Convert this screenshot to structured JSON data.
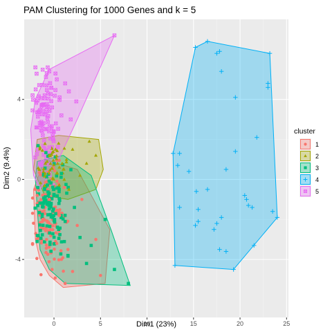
{
  "chart_data": {
    "type": "scatter",
    "title": "PAM Clustering for 1000 Genes and k = 5",
    "xlabel": "Dim1 (23%)",
    "ylabel": "Dim2 (9.4%)",
    "xlim": [
      -3.2,
      25.2
    ],
    "ylim": [
      -6.9,
      8.0
    ],
    "x_ticks": [
      0,
      5,
      10,
      15,
      20,
      25
    ],
    "y_ticks": [
      -4,
      0,
      4
    ],
    "grid": true,
    "legend": {
      "title": "cluster",
      "placement": "right",
      "entries": [
        "1",
        "2",
        "3",
        "4",
        "5"
      ]
    },
    "series": [
      {
        "name": "1",
        "color": "#F8766D",
        "shape": "circle",
        "hull": [
          [
            -2.0,
            -3.0
          ],
          [
            -1.5,
            -4.0
          ],
          [
            -0.5,
            -4.8
          ],
          [
            1.0,
            -5.4
          ],
          [
            5.5,
            -5.2
          ],
          [
            6.0,
            -2.5
          ],
          [
            2.5,
            0.5
          ],
          [
            -1.0,
            1.0
          ],
          [
            -2.2,
            -0.5
          ]
        ],
        "points": [
          [
            -0.5,
            -1.0
          ],
          [
            -1.2,
            -2.0
          ],
          [
            0.3,
            -3.2
          ],
          [
            0.8,
            -4.0
          ],
          [
            -0.2,
            -4.5
          ],
          [
            1.2,
            -5.2
          ],
          [
            2.5,
            -2.3
          ],
          [
            4.5,
            -3.0
          ],
          [
            5.0,
            -4.8
          ],
          [
            3.0,
            -1.0
          ],
          [
            -1.8,
            -0.8
          ],
          [
            0.6,
            -1.8
          ],
          [
            1.5,
            -3.5
          ],
          [
            2.0,
            -4.6
          ],
          [
            -0.8,
            -3.0
          ],
          [
            1.1,
            -0.4
          ]
        ]
      },
      {
        "name": "2",
        "color": "#A3A500",
        "shape": "triangle",
        "hull": [
          [
            -2.2,
            0.5
          ],
          [
            -1.8,
            2.0
          ],
          [
            0.5,
            2.2
          ],
          [
            4.8,
            2.0
          ],
          [
            5.3,
            0.5
          ],
          [
            4.5,
            -0.5
          ],
          [
            1.5,
            -1.0
          ],
          [
            -1.0,
            -0.8
          ]
        ],
        "points": [
          [
            0.5,
            1.8
          ],
          [
            2.0,
            1.5
          ],
          [
            3.5,
            0.8
          ],
          [
            4.5,
            1.2
          ],
          [
            1.0,
            0.5
          ],
          [
            -0.5,
            1.2
          ],
          [
            2.8,
            0.2
          ],
          [
            3.8,
            1.9
          ],
          [
            -1.5,
            1.6
          ],
          [
            1.6,
            -0.5
          ]
        ]
      },
      {
        "name": "3",
        "color": "#00BF7D",
        "shape": "square",
        "hull": [
          [
            -2.0,
            0.0
          ],
          [
            -1.5,
            -3.5
          ],
          [
            -0.5,
            -4.5
          ],
          [
            1.2,
            -5.2
          ],
          [
            8.2,
            -5.3
          ],
          [
            6.2,
            -2.6
          ],
          [
            4.0,
            0.2
          ],
          [
            1.0,
            1.2
          ],
          [
            -1.8,
            0.9
          ]
        ],
        "points": [
          [
            -0.3,
            -1.2
          ],
          [
            0.5,
            -2.5
          ],
          [
            1.5,
            -3.8
          ],
          [
            3.5,
            -4.2
          ],
          [
            8.0,
            -5.2
          ],
          [
            5.5,
            -2.0
          ],
          [
            2.2,
            -1.4
          ],
          [
            -1.0,
            -0.5
          ],
          [
            0.8,
            0.3
          ],
          [
            4.0,
            -3.3
          ],
          [
            6.5,
            -4.5
          ],
          [
            2.8,
            -2.9
          ]
        ]
      },
      {
        "name": "4",
        "color": "#00B0F6",
        "shape": "plus",
        "hull": [
          [
            12.8,
            1.3
          ],
          [
            15.2,
            6.6
          ],
          [
            16.5,
            6.9
          ],
          [
            23.2,
            6.3
          ],
          [
            24.0,
            -1.9
          ],
          [
            19.3,
            -4.5
          ],
          [
            13.0,
            -4.3
          ]
        ],
        "points": [
          [
            15.2,
            6.6
          ],
          [
            16.5,
            6.9
          ],
          [
            17.5,
            6.3
          ],
          [
            17.8,
            6.4
          ],
          [
            18.0,
            5.4
          ],
          [
            23.2,
            6.3
          ],
          [
            23.0,
            4.8
          ],
          [
            23.0,
            4.6
          ],
          [
            19.5,
            4.1
          ],
          [
            21.8,
            2.1
          ],
          [
            19.5,
            1.4
          ],
          [
            12.8,
            1.3
          ],
          [
            13.5,
            1.3
          ],
          [
            13.3,
            0.7
          ],
          [
            14.5,
            0.4
          ],
          [
            18.5,
            0.5
          ],
          [
            16.5,
            -0.5
          ],
          [
            15.3,
            -0.6
          ],
          [
            20.5,
            -0.8
          ],
          [
            20.7,
            -1.0
          ],
          [
            20.9,
            -1.3
          ],
          [
            21.3,
            -1.4
          ],
          [
            23.5,
            -1.6
          ],
          [
            24.0,
            -1.9
          ],
          [
            13.5,
            -1.4
          ],
          [
            15.5,
            -1.5
          ],
          [
            18.0,
            -1.9
          ],
          [
            15.5,
            -2.1
          ],
          [
            15.2,
            -2.3
          ],
          [
            17.5,
            -2.2
          ],
          [
            17.2,
            -2.5
          ],
          [
            17.8,
            -3.5
          ],
          [
            18.5,
            -3.6
          ],
          [
            21.5,
            -3.3
          ],
          [
            19.3,
            -4.5
          ],
          [
            13.0,
            -4.3
          ]
        ]
      },
      {
        "name": "5",
        "color": "#E76BF3",
        "shape": "boxcross",
        "hull": [
          [
            -2.2,
            0.2
          ],
          [
            -2.5,
            2.5
          ],
          [
            -2.0,
            4.0
          ],
          [
            -0.5,
            5.5
          ],
          [
            6.5,
            7.2
          ],
          [
            2.5,
            3.0
          ],
          [
            0.5,
            1.0
          ],
          [
            -1.5,
            -0.5
          ]
        ],
        "points": [
          [
            6.5,
            7.2
          ],
          [
            -0.5,
            5.4
          ],
          [
            0.3,
            5.0
          ],
          [
            1.2,
            4.8
          ],
          [
            1.6,
            4.4
          ],
          [
            2.4,
            3.9
          ],
          [
            -1.0,
            4.2
          ],
          [
            -0.2,
            3.6
          ],
          [
            0.8,
            3.2
          ],
          [
            -1.8,
            2.6
          ],
          [
            -1.2,
            2.2
          ],
          [
            -0.5,
            1.6
          ],
          [
            -2.0,
            1.1
          ],
          [
            -1.5,
            0.8
          ],
          [
            0.2,
            2.8
          ],
          [
            1.8,
            3.0
          ],
          [
            -0.8,
            4.7
          ],
          [
            0.6,
            4.1
          ],
          [
            -1.6,
            3.4
          ],
          [
            -0.1,
            2.0
          ]
        ]
      }
    ],
    "dense_clouds": [
      {
        "series": "5",
        "n": 90,
        "center": [
          -1.0,
          3.0
        ],
        "spread": [
          0.7,
          1.3
        ]
      },
      {
        "series": "1",
        "n": 110,
        "center": [
          -0.4,
          -2.0
        ],
        "spread": [
          0.9,
          1.2
        ]
      },
      {
        "series": "3",
        "n": 110,
        "center": [
          -0.4,
          -1.4
        ],
        "spread": [
          0.9,
          1.2
        ]
      },
      {
        "series": "2",
        "n": 45,
        "center": [
          -0.3,
          0.6
        ],
        "spread": [
          0.9,
          0.6
        ]
      }
    ]
  }
}
